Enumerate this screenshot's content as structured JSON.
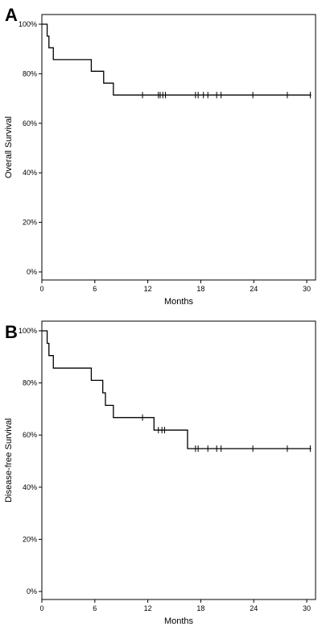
{
  "chart_data": [
    {
      "type": "line",
      "panel": "A",
      "xlabel": "Months",
      "ylabel": "Overall Survival",
      "xlim": [
        0,
        31
      ],
      "ylim": [
        0,
        100
      ],
      "xticks": [
        0,
        6,
        12,
        18,
        24,
        30
      ],
      "yticks": [
        0,
        20,
        40,
        60,
        80,
        100
      ],
      "ytick_labels": [
        "0%",
        "20%",
        "40%",
        "60%",
        "80%",
        "100%"
      ],
      "grid": false,
      "series": [
        {
          "steps": [
            {
              "x": 0,
              "y": 100
            },
            {
              "x": 0.6,
              "y": 95.2
            },
            {
              "x": 0.8,
              "y": 90.5
            },
            {
              "x": 1.3,
              "y": 85.7
            },
            {
              "x": 5.6,
              "y": 81.0
            },
            {
              "x": 7.0,
              "y": 76.2
            },
            {
              "x": 8.1,
              "y": 71.4
            }
          ],
          "x_end": 30.5,
          "censored": [
            11.4,
            13.2,
            13.4,
            13.7,
            14.0,
            17.4,
            17.7,
            18.3,
            18.8,
            19.8,
            20.3,
            23.9,
            27.8,
            30.4
          ]
        }
      ]
    },
    {
      "type": "line",
      "panel": "B",
      "xlabel": "Months",
      "ylabel": "Disease-free Survival",
      "xlim": [
        0,
        31
      ],
      "ylim": [
        0,
        100
      ],
      "xticks": [
        0,
        6,
        12,
        18,
        24,
        30
      ],
      "yticks": [
        0,
        20,
        40,
        60,
        80,
        100
      ],
      "ytick_labels": [
        "0%",
        "20%",
        "40%",
        "60%",
        "80%",
        "100%"
      ],
      "grid": false,
      "series": [
        {
          "steps": [
            {
              "x": 0,
              "y": 100
            },
            {
              "x": 0.6,
              "y": 95.2
            },
            {
              "x": 0.8,
              "y": 90.5
            },
            {
              "x": 1.3,
              "y": 85.7
            },
            {
              "x": 5.6,
              "y": 81.0
            },
            {
              "x": 6.9,
              "y": 76.2
            },
            {
              "x": 7.2,
              "y": 71.4
            },
            {
              "x": 8.1,
              "y": 66.7
            },
            {
              "x": 12.7,
              "y": 61.9
            },
            {
              "x": 16.5,
              "y": 54.8
            }
          ],
          "x_end": 30.5,
          "censored": [
            11.4,
            13.2,
            13.6,
            13.9,
            17.4,
            17.7,
            18.8,
            19.8,
            20.3,
            23.9,
            27.8,
            30.4
          ]
        }
      ]
    }
  ]
}
